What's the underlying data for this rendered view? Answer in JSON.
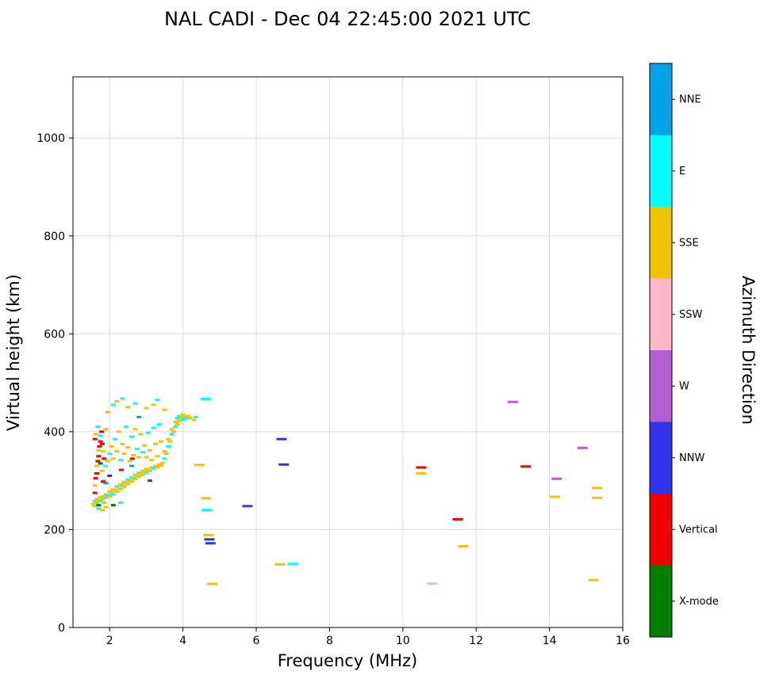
{
  "chart_data": {
    "type": "scatter",
    "title": "NAL CADI - Dec 04 22:45:00 2021 UTC",
    "xlabel": "Frequency (MHz)",
    "ylabel": "Virtual height (km)",
    "xlim": [
      1,
      16
    ],
    "ylim": [
      0,
      1125
    ],
    "xticks": [
      2,
      4,
      6,
      8,
      10,
      12,
      14,
      16
    ],
    "yticks": [
      0,
      200,
      400,
      600,
      800,
      1000
    ],
    "grid": true,
    "grid_color": "#d9d9d9",
    "colorbar": {
      "title": "Azimuth Direction",
      "entries": [
        {
          "label": "NNE",
          "color": "#00A3E8"
        },
        {
          "label": "E",
          "color": "#00FFFF"
        },
        {
          "label": "SSE",
          "color": "#F0C400"
        },
        {
          "label": "SSW",
          "color": "#FFB6C8"
        },
        {
          "label": "W",
          "color": "#B45FD0"
        },
        {
          "label": "NNW",
          "color": "#3333EE"
        },
        {
          "label": "Vertical",
          "color": "#F00000"
        },
        {
          "label": "X-mode",
          "color": "#008000"
        }
      ]
    },
    "dir_codes": {
      "V": "Vertical",
      "X": "X-mode"
    },
    "cluster_points": [
      [
        1.55,
        252,
        "SSE"
      ],
      [
        1.6,
        248,
        "SSE"
      ],
      [
        1.6,
        258,
        "E"
      ],
      [
        1.65,
        255,
        "SSE"
      ],
      [
        1.65,
        262,
        "SSE"
      ],
      [
        1.7,
        250,
        "X"
      ],
      [
        1.7,
        260,
        "SSE"
      ],
      [
        1.75,
        258,
        "E"
      ],
      [
        1.75,
        266,
        "SSE"
      ],
      [
        1.8,
        262,
        "SSE"
      ],
      [
        1.85,
        255,
        "SSE"
      ],
      [
        1.85,
        268,
        "E"
      ],
      [
        1.9,
        265,
        "SSE"
      ],
      [
        1.9,
        272,
        "SSE"
      ],
      [
        1.95,
        270,
        "E"
      ],
      [
        2.0,
        268,
        "SSE"
      ],
      [
        2.0,
        278,
        "SSE"
      ],
      [
        2.05,
        275,
        "SSE"
      ],
      [
        2.1,
        272,
        "E"
      ],
      [
        2.1,
        282,
        "SSE"
      ],
      [
        2.15,
        280,
        "SSE"
      ],
      [
        2.2,
        278,
        "SSE"
      ],
      [
        2.2,
        288,
        "E"
      ],
      [
        2.25,
        285,
        "SSE"
      ],
      [
        2.3,
        283,
        "SSE"
      ],
      [
        2.3,
        292,
        "SSE"
      ],
      [
        2.35,
        290,
        "E"
      ],
      [
        2.4,
        288,
        "SSE"
      ],
      [
        2.4,
        297,
        "SSE"
      ],
      [
        2.45,
        295,
        "SSE"
      ],
      [
        2.5,
        293,
        "SSE"
      ],
      [
        2.5,
        302,
        "E"
      ],
      [
        2.55,
        300,
        "SSE"
      ],
      [
        2.6,
        298,
        "SSE"
      ],
      [
        2.6,
        307,
        "SSE"
      ],
      [
        2.65,
        305,
        "E"
      ],
      [
        2.7,
        303,
        "SSE"
      ],
      [
        2.7,
        312,
        "SSE"
      ],
      [
        2.75,
        310,
        "SSE"
      ],
      [
        2.8,
        308,
        "SSE"
      ],
      [
        2.8,
        316,
        "E"
      ],
      [
        2.85,
        314,
        "SSE"
      ],
      [
        2.9,
        312,
        "SSE"
      ],
      [
        2.9,
        320,
        "SSE"
      ],
      [
        2.95,
        318,
        "SSE"
      ],
      [
        3.0,
        316,
        "E"
      ],
      [
        3.0,
        324,
        "SSE"
      ],
      [
        3.05,
        322,
        "SSE"
      ],
      [
        3.1,
        320,
        "SSE"
      ],
      [
        3.15,
        327,
        "SSE"
      ],
      [
        3.2,
        325,
        "E"
      ],
      [
        3.25,
        330,
        "SSE"
      ],
      [
        3.3,
        328,
        "SSE"
      ],
      [
        3.35,
        333,
        "SSE"
      ],
      [
        3.4,
        331,
        "SSE"
      ],
      [
        3.45,
        336,
        "SSE"
      ],
      [
        3.5,
        345,
        "E"
      ],
      [
        3.5,
        360,
        "SSE"
      ],
      [
        3.55,
        355,
        "SSE"
      ],
      [
        3.6,
        370,
        "E"
      ],
      [
        3.6,
        385,
        "SSE"
      ],
      [
        3.65,
        380,
        "SSE"
      ],
      [
        3.7,
        395,
        "E"
      ],
      [
        3.7,
        405,
        "SSE"
      ],
      [
        3.75,
        400,
        "SSE"
      ],
      [
        3.8,
        410,
        "E"
      ],
      [
        3.8,
        420,
        "SSE"
      ],
      [
        3.85,
        415,
        "SSE"
      ],
      [
        3.85,
        428,
        "E"
      ],
      [
        3.9,
        422,
        "SSE"
      ],
      [
        3.9,
        432,
        "E"
      ],
      [
        3.95,
        428,
        "SSE"
      ],
      [
        4.0,
        425,
        "E"
      ],
      [
        4.0,
        435,
        "SSE"
      ],
      [
        4.05,
        430,
        "SSE"
      ],
      [
        4.1,
        427,
        "E"
      ],
      [
        4.15,
        432,
        "SSE"
      ],
      [
        4.2,
        428,
        "SSE"
      ],
      [
        1.6,
        275,
        "V"
      ],
      [
        1.6,
        290,
        "SSE"
      ],
      [
        1.62,
        305,
        "V"
      ],
      [
        1.65,
        315,
        "V"
      ],
      [
        1.65,
        330,
        "SSE"
      ],
      [
        1.68,
        340,
        "V"
      ],
      [
        1.7,
        350,
        "V"
      ],
      [
        1.7,
        362,
        "SSE"
      ],
      [
        1.72,
        370,
        "V"
      ],
      [
        1.75,
        380,
        "V"
      ],
      [
        1.75,
        392,
        "E"
      ],
      [
        1.78,
        400,
        "V"
      ],
      [
        1.6,
        385,
        "V"
      ],
      [
        1.62,
        395,
        "SSE"
      ],
      [
        1.68,
        410,
        "E"
      ],
      [
        1.8,
        375,
        "V"
      ],
      [
        1.82,
        360,
        "SSE"
      ],
      [
        1.85,
        345,
        "V"
      ],
      [
        1.88,
        330,
        "E"
      ],
      [
        1.9,
        405,
        "SSE"
      ],
      [
        1.75,
        335,
        "X"
      ],
      [
        1.8,
        320,
        "SSE"
      ],
      [
        1.85,
        300,
        "E"
      ],
      [
        1.95,
        340,
        "SSE"
      ],
      [
        2.0,
        355,
        "E"
      ],
      [
        2.05,
        370,
        "SSE"
      ],
      [
        2.1,
        345,
        "SSE"
      ],
      [
        2.15,
        385,
        "E"
      ],
      [
        2.2,
        360,
        "SSE"
      ],
      [
        2.25,
        400,
        "SSE"
      ],
      [
        2.3,
        342,
        "E"
      ],
      [
        2.35,
        375,
        "SSE"
      ],
      [
        2.4,
        355,
        "SSE"
      ],
      [
        2.45,
        410,
        "E"
      ],
      [
        2.5,
        368,
        "SSE"
      ],
      [
        2.55,
        340,
        "SSE"
      ],
      [
        2.6,
        390,
        "E"
      ],
      [
        2.65,
        352,
        "SSE"
      ],
      [
        2.7,
        405,
        "SSE"
      ],
      [
        2.75,
        365,
        "E"
      ],
      [
        2.8,
        348,
        "SSE"
      ],
      [
        2.85,
        395,
        "SSE"
      ],
      [
        2.9,
        358,
        "E"
      ],
      [
        2.95,
        372,
        "SSE"
      ],
      [
        3.0,
        348,
        "SSE"
      ],
      [
        3.05,
        398,
        "E"
      ],
      [
        3.1,
        362,
        "SSE"
      ],
      [
        3.15,
        342,
        "SSE"
      ],
      [
        3.2,
        408,
        "E"
      ],
      [
        3.25,
        375,
        "SSE"
      ],
      [
        3.3,
        350,
        "SSE"
      ],
      [
        3.35,
        415,
        "E"
      ],
      [
        3.4,
        380,
        "SSE"
      ],
      [
        2.1,
        455,
        "E"
      ],
      [
        2.2,
        462,
        "SSE"
      ],
      [
        2.5,
        450,
        "SSE"
      ],
      [
        2.7,
        458,
        "E"
      ],
      [
        3.0,
        448,
        "SSE"
      ],
      [
        3.2,
        455,
        "SSE"
      ],
      [
        3.3,
        465,
        "E"
      ],
      [
        3.5,
        445,
        "SSE"
      ],
      [
        2.35,
        468,
        "E"
      ],
      [
        1.95,
        440,
        "SSE"
      ],
      [
        1.7,
        243,
        "E"
      ],
      [
        1.9,
        246,
        "SSE"
      ],
      [
        2.1,
        250,
        "X"
      ],
      [
        1.8,
        240,
        "SSE"
      ],
      [
        2.3,
        255,
        "E"
      ],
      [
        2.0,
        310,
        "NNW"
      ],
      [
        2.6,
        330,
        "NNE"
      ],
      [
        3.1,
        300,
        "NNW"
      ],
      [
        1.9,
        295,
        "NNE"
      ],
      [
        2.8,
        430,
        "NNE"
      ],
      [
        1.82,
        298,
        "V"
      ],
      [
        2.32,
        322,
        "V"
      ],
      [
        2.62,
        345,
        "V"
      ],
      [
        4.3,
        424,
        "SSE"
      ],
      [
        4.35,
        430,
        "E"
      ]
    ],
    "isolated_points": [
      [
        4.45,
        332,
        "SSE"
      ],
      [
        4.62,
        467,
        "E"
      ],
      [
        4.65,
        240,
        "E"
      ],
      [
        4.63,
        264,
        "SSE"
      ],
      [
        4.7,
        189,
        "SSE"
      ],
      [
        4.72,
        180,
        "NNW"
      ],
      [
        4.75,
        172,
        "NNW"
      ],
      [
        4.8,
        89,
        "SSE"
      ],
      [
        5.76,
        248,
        "NNW"
      ],
      [
        6.69,
        385,
        "NNW"
      ],
      [
        6.75,
        333,
        "NNW"
      ],
      [
        6.65,
        129,
        "SSE"
      ],
      [
        7.0,
        130,
        "E"
      ],
      [
        10.5,
        327,
        "V"
      ],
      [
        10.5,
        315,
        "SSE"
      ],
      [
        10.8,
        90,
        "SSW"
      ],
      [
        11.5,
        221,
        "V"
      ],
      [
        11.65,
        166,
        "SSE"
      ],
      [
        13.0,
        461,
        "W"
      ],
      [
        13.35,
        329,
        "V"
      ],
      [
        14.2,
        304,
        "W"
      ],
      [
        14.15,
        267,
        "SSE"
      ],
      [
        14.9,
        367,
        "W"
      ],
      [
        15.3,
        285,
        "SSE"
      ],
      [
        15.3,
        265,
        "SSE"
      ],
      [
        15.2,
        97,
        "SSE"
      ]
    ]
  }
}
